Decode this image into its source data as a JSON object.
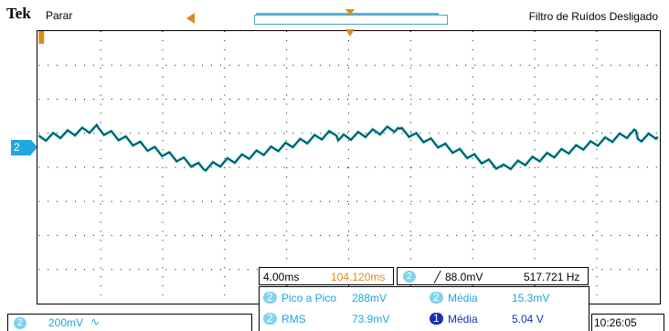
{
  "header": {
    "brand": "Tek",
    "run_status": "Parar",
    "filter_status": "Filtro de Ruídos Desligado"
  },
  "channel": {
    "marker": "2",
    "scale": "200mV",
    "coupling_icon": "ac-coupling-icon"
  },
  "timebase": {
    "scale": "4.00ms",
    "position": "104.120ms"
  },
  "trigger": {
    "channel": "2",
    "level": "88.0mV",
    "slope_icon": "rising-edge-icon",
    "frequency": "517.721 Hz"
  },
  "measurements": [
    {
      "source": "2",
      "label": "Pico a Pico",
      "value": "288mV"
    },
    {
      "source": "2",
      "label": "Média",
      "value": "15.3mV"
    },
    {
      "source": "2",
      "label": "RMS",
      "value": "73.9mV"
    },
    {
      "source": "1",
      "label": "Média",
      "value": "5.04 V"
    }
  ],
  "clock": "10:26:05",
  "colors": {
    "trace": "#2bb8c6",
    "trigger": "#e08a1e",
    "channel2": "#1ea7e0",
    "channel1": "#1b2fb8"
  }
}
